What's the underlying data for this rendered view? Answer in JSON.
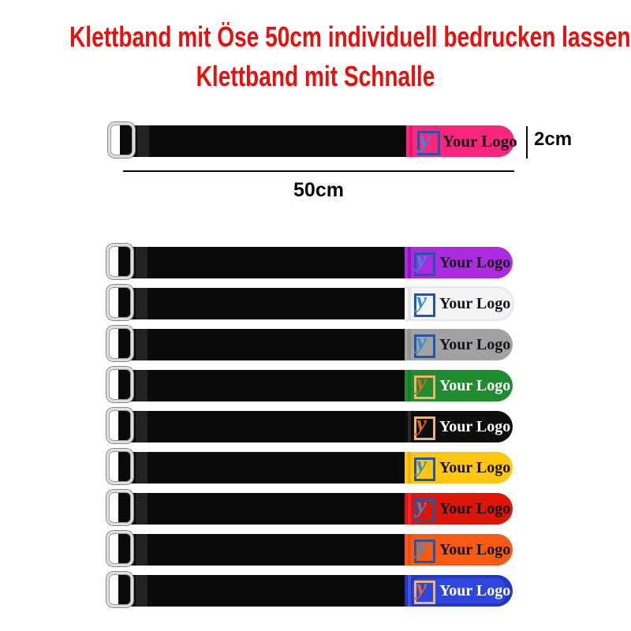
{
  "title": {
    "line1": "Klettband mit Öse 50cm individuell bedrucken lassen",
    "line2": "Klettband mit Schnalle"
  },
  "annotations": {
    "height_label": "2cm",
    "length_label": "50cm"
  },
  "logo": {
    "text": "Your Logo",
    "glyph": "y"
  },
  "colors": {
    "title_red": "#E8100C",
    "strap_black": "#0a0a0a"
  },
  "logo_styles": {
    "blue": {
      "border": "#2456A8",
      "glyph": "#2F8FDC"
    },
    "orange": {
      "border": "#EFB570",
      "glyph": "#E8661A"
    }
  },
  "main_strap": {
    "color_name": "pink",
    "tip_color": "#FA267C",
    "stripe_color": "#E8156B",
    "logo_style": "blue",
    "text_color": "#14141C"
  },
  "straps": [
    {
      "color_name": "purple",
      "tip_color": "#AC2BE0",
      "stripe_color": "#9318C4",
      "logo_style": "blue",
      "text_color": "#14141C"
    },
    {
      "color_name": "white",
      "tip_color": "#F4F4F4",
      "stripe_color": "#E3E3E3",
      "logo_style": "blue",
      "text_color": "#14141C",
      "shadow": true
    },
    {
      "color_name": "gray",
      "tip_color": "#A2A2A2",
      "stripe_color": "#939393",
      "logo_style": "blue",
      "text_color": "#14141C"
    },
    {
      "color_name": "green",
      "tip_color": "#1E8C2F",
      "stripe_color": "#177F26",
      "logo_style": "orange",
      "text_color": "#FFFFFF"
    },
    {
      "color_name": "black",
      "tip_color": "#0D0D0D",
      "stripe_color": "#2A2A2A",
      "logo_style": "orange",
      "text_color": "#FFFFFF"
    },
    {
      "color_name": "yellow",
      "tip_color": "#FEC60F",
      "stripe_color": "#F0B409",
      "logo_style": "blue",
      "text_color": "#14141C"
    },
    {
      "color_name": "red",
      "tip_color": "#DC1505",
      "stripe_color": "#F9203E",
      "logo_style": "blue",
      "text_color": "#14141C"
    },
    {
      "color_name": "orange",
      "tip_color": "#F85913",
      "stripe_color": "#E8500E",
      "logo_style": "blue",
      "text_color": "#14141C"
    },
    {
      "color_name": "blue",
      "tip_color": "#2236C7",
      "stripe_color": "#4156DD",
      "panel_color": "#2F45DF",
      "logo_style": "orange",
      "text_color": "#FFFFFF"
    }
  ]
}
